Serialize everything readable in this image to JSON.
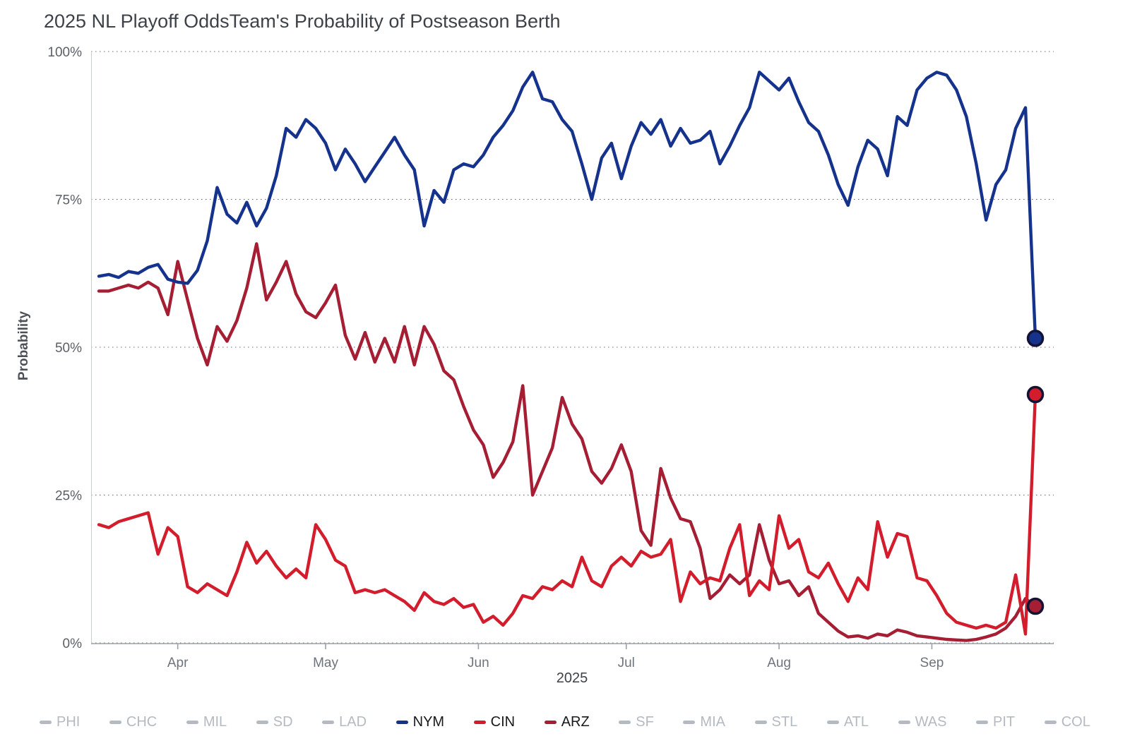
{
  "colors": {
    "background": "#ffffff",
    "nym": "#15338c",
    "cin": "#d31c2c",
    "arz": "#a51e33",
    "inactive": "#b4bac1",
    "dot_stroke": "#131336"
  },
  "chart_data": {
    "type": "line",
    "title": "2025 NL Playoff Odds",
    "subtitle": "Team's Probability of Postseason Berth",
    "xlabel": "2025",
    "ylabel": "Probability",
    "ylim": [
      0,
      100
    ],
    "yticks": [
      0,
      25,
      50,
      75,
      100
    ],
    "ytick_suffix": "%",
    "grid": "horizontal-dotted",
    "x_axis": {
      "start_day": 0,
      "end_day": 190,
      "note": "day 0 = mid-March 2025, points sampled every 2 days",
      "months": [
        {
          "label": "Apr",
          "day": 16
        },
        {
          "label": "May",
          "day": 46
        },
        {
          "label": "Jun",
          "day": 77
        },
        {
          "label": "Jul",
          "day": 107
        },
        {
          "label": "Aug",
          "day": 138
        },
        {
          "label": "Sep",
          "day": 169
        }
      ]
    },
    "series": [
      {
        "name": "NYM",
        "color": "#15338c",
        "end_value": 51.5,
        "end_dot": true,
        "values": [
          62,
          62.3,
          61.8,
          62.8,
          62.5,
          63.5,
          64,
          61.5,
          61,
          60.8,
          63,
          68,
          77,
          72.5,
          71,
          74.5,
          70.5,
          73.5,
          79,
          87,
          85.5,
          88.5,
          87,
          84.5,
          80,
          83.5,
          81,
          78,
          80.5,
          83,
          85.5,
          82.5,
          80,
          70.5,
          76.5,
          74.5,
          80,
          81,
          80.5,
          82.5,
          85.5,
          87.5,
          90,
          94,
          96.5,
          92,
          91.5,
          88.5,
          86.5,
          81,
          75,
          82,
          84.5,
          78.5,
          84,
          88,
          86,
          88.5,
          84,
          87,
          84.5,
          85,
          86.5,
          81,
          84,
          87.5,
          90.5,
          96.5,
          95,
          93.5,
          95.5,
          91.5,
          88,
          86.5,
          82.5,
          77.5,
          74,
          80.5,
          85,
          83.5,
          79,
          89,
          87.5,
          93.5,
          95.5,
          96.5,
          96,
          93.5,
          89,
          81,
          71.5,
          77.5,
          80,
          87,
          90.5,
          51.5
        ]
      },
      {
        "name": "CIN",
        "color": "#d31c2c",
        "end_value": 42,
        "end_dot": true,
        "values": [
          20,
          19.5,
          20.5,
          21,
          21.5,
          22,
          15,
          19.5,
          18,
          9.5,
          8.5,
          10,
          9,
          8,
          12,
          17,
          13.5,
          15.5,
          13,
          11,
          12.5,
          11,
          20,
          17.5,
          14,
          13,
          8.5,
          9,
          8.5,
          9,
          8,
          7,
          5.5,
          8.5,
          7,
          6.5,
          7.5,
          6,
          6.5,
          3.5,
          4.5,
          3,
          5,
          8,
          7.5,
          9.5,
          9,
          10.5,
          9.5,
          14.5,
          10.5,
          9.5,
          13,
          14.5,
          13,
          15.5,
          14.5,
          15,
          17.5,
          7,
          12,
          10,
          11,
          10.5,
          16,
          20,
          8,
          10.5,
          9,
          21.5,
          16,
          17.5,
          12,
          11,
          13.5,
          10,
          7,
          11,
          9,
          20.5,
          14.5,
          18.5,
          18,
          11,
          10.5,
          8,
          5,
          3.5,
          3,
          2.5,
          3,
          2.5,
          3.5,
          11.5,
          1.5,
          42
        ]
      },
      {
        "name": "ARZ",
        "color": "#a51e33",
        "end_value": 6.2,
        "end_dot": true,
        "values": [
          59.5,
          59.5,
          60,
          60.5,
          60,
          61,
          60,
          55.5,
          64.5,
          58,
          51.5,
          47,
          53.5,
          51,
          54.5,
          60,
          67.5,
          58,
          61,
          64.5,
          59,
          56,
          55,
          57.5,
          60.5,
          52,
          48,
          52.5,
          47.5,
          51.5,
          47.5,
          53.5,
          47,
          53.5,
          50.5,
          46,
          44.5,
          40,
          36,
          33.5,
          28,
          30.5,
          34,
          43.5,
          25,
          29,
          33,
          41.5,
          37,
          34.5,
          29,
          27,
          29.5,
          33.5,
          29,
          19,
          16.5,
          29.5,
          24.5,
          21,
          20.5,
          16,
          7.5,
          9,
          11.5,
          10,
          11.5,
          20,
          14,
          10,
          10.5,
          8,
          9.5,
          5,
          3.5,
          2,
          1,
          1.2,
          0.8,
          1.5,
          1.2,
          2.2,
          1.8,
          1.2,
          1,
          0.8,
          0.6,
          0.5,
          0.4,
          0.6,
          1,
          1.5,
          2.5,
          4.5,
          7.5,
          6.2
        ]
      }
    ],
    "legend": [
      {
        "label": "PHI",
        "active": false
      },
      {
        "label": "CHC",
        "active": false
      },
      {
        "label": "MIL",
        "active": false
      },
      {
        "label": "SD",
        "active": false
      },
      {
        "label": "LAD",
        "active": false
      },
      {
        "label": "NYM",
        "active": true,
        "color": "#15338c"
      },
      {
        "label": "CIN",
        "active": true,
        "color": "#d31c2c"
      },
      {
        "label": "ARZ",
        "active": true,
        "color": "#a51e33"
      },
      {
        "label": "SF",
        "active": false
      },
      {
        "label": "MIA",
        "active": false
      },
      {
        "label": "STL",
        "active": false
      },
      {
        "label": "ATL",
        "active": false
      },
      {
        "label": "WAS",
        "active": false
      },
      {
        "label": "PIT",
        "active": false
      },
      {
        "label": "COL",
        "active": false
      }
    ]
  }
}
